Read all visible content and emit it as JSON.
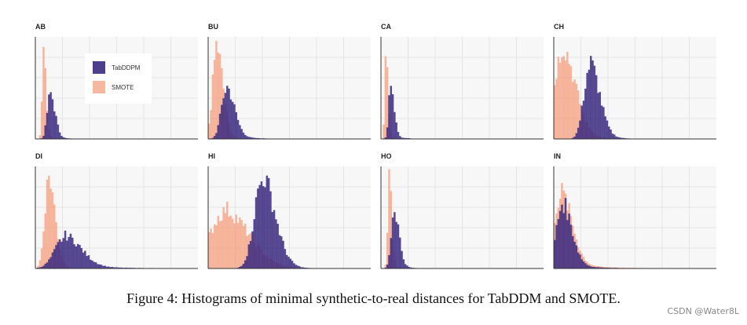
{
  "caption": "Figure 4: Histograms of minimal synthetic-to-real distances for TabDDM and SMOTE.",
  "watermark": "CSDN @Water8L",
  "colors": {
    "tabddpm": "#3b2a80",
    "smote": "#f59a78",
    "grid": "#e4e4e4",
    "panel_bg": "#f7f7f7"
  },
  "legend": {
    "items": [
      "TabDDPM",
      "SMOTE"
    ],
    "position": "inside-top-left of first panel"
  },
  "chart_data": [
    {
      "type": "histogram",
      "title": "AB",
      "grid": true,
      "series": [
        {
          "name": "TabDDPM",
          "peak_at": 0.09,
          "peak": 0.42,
          "width": 0.03,
          "tail": 0.06
        },
        {
          "name": "SMOTE",
          "peak_at": 0.05,
          "peak": 0.85,
          "width": 0.015,
          "tail": 0.03
        }
      ]
    },
    {
      "type": "histogram",
      "title": "BU",
      "grid": true,
      "series": [
        {
          "name": "TabDDPM",
          "peak_at": 0.11,
          "peak": 0.48,
          "width": 0.05,
          "tail": 0.12
        },
        {
          "name": "SMOTE",
          "peak_at": 0.05,
          "peak": 0.85,
          "width": 0.04,
          "tail": 0.06
        }
      ]
    },
    {
      "type": "histogram",
      "title": "CA",
      "grid": true,
      "series": [
        {
          "name": "TabDDPM",
          "peak_at": 0.06,
          "peak": 0.55,
          "width": 0.02,
          "tail": 0.06
        },
        {
          "name": "SMOTE",
          "peak_at": 0.03,
          "peak": 0.85,
          "width": 0.012,
          "tail": 0.03
        }
      ]
    },
    {
      "type": "histogram",
      "title": "CH",
      "grid": true,
      "series": [
        {
          "name": "TabDDPM",
          "peak_at": 0.22,
          "peak": 0.7,
          "width": 0.06,
          "tail": 0.1
        },
        {
          "name": "SMOTE",
          "peak_at": 0.05,
          "peak": 0.85,
          "width": 0.08,
          "tail": 0.12
        }
      ]
    },
    {
      "type": "histogram",
      "title": "DI",
      "grid": true,
      "series": [
        {
          "name": "TabDDPM",
          "peak_at": 0.18,
          "peak": 0.3,
          "width": 0.1,
          "tail": 0.3
        },
        {
          "name": "SMOTE",
          "peak_at": 0.08,
          "peak": 0.85,
          "width": 0.04,
          "tail": 0.06
        }
      ]
    },
    {
      "type": "histogram",
      "title": "HI",
      "grid": true,
      "series": [
        {
          "name": "TabDDPM",
          "peak_at": 0.33,
          "peak": 0.85,
          "width": 0.08,
          "tail": 0.1
        },
        {
          "name": "SMOTE",
          "peak_at": 0.1,
          "peak": 0.55,
          "width": 0.15,
          "tail": 0.05
        }
      ]
    },
    {
      "type": "histogram",
      "title": "HO",
      "grid": true,
      "series": [
        {
          "name": "TabDDPM",
          "peak_at": 0.08,
          "peak": 0.55,
          "width": 0.03,
          "tail": 0.06
        },
        {
          "name": "SMOTE",
          "peak_at": 0.05,
          "peak": 0.85,
          "width": 0.015,
          "tail": 0.03
        }
      ]
    },
    {
      "type": "histogram",
      "title": "IN",
      "grid": true,
      "series": [
        {
          "name": "TabDDPM",
          "peak_at": 0.05,
          "peak": 0.6,
          "width": 0.06,
          "tail": 0.15
        },
        {
          "name": "SMOTE",
          "peak_at": 0.04,
          "peak": 0.7,
          "width": 0.07,
          "tail": 0.2
        }
      ]
    }
  ]
}
